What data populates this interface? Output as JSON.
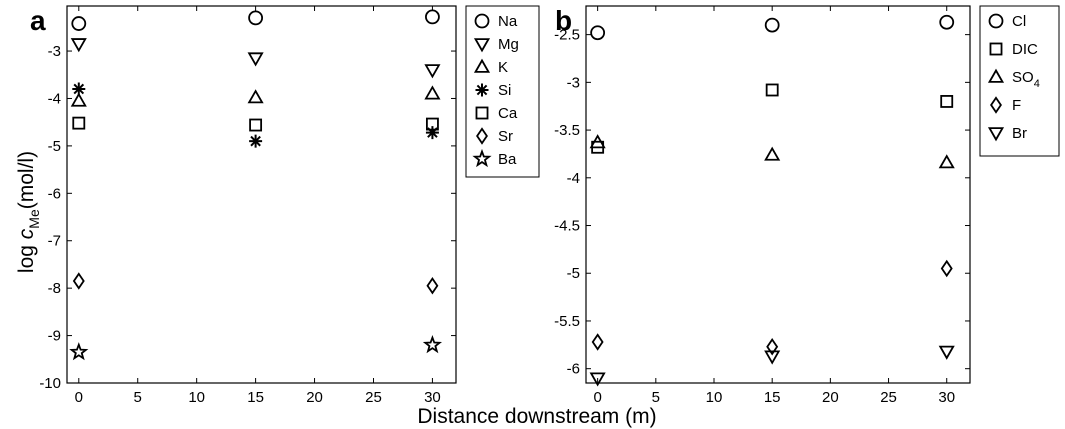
{
  "figure": {
    "xlabel": "Distance downstream (m)"
  },
  "chart_data": [
    {
      "panel": "a",
      "type": "scatter",
      "ylabel_prefix": "log ",
      "ylabel_var": "c",
      "ylabel_sub": "Me",
      "ylabel_suffix": "(mol/l)",
      "xlim": [
        -1,
        32
      ],
      "ylim": [
        -10,
        -2.05
      ],
      "xticks": [
        0,
        5,
        10,
        15,
        20,
        25,
        30
      ],
      "yticks": [
        -10,
        -9,
        -8,
        -7,
        -6,
        -5,
        -4,
        -3
      ],
      "legend": "outside-right",
      "series": [
        {
          "name": "Na",
          "marker": "circle",
          "x": [
            0,
            15,
            30
          ],
          "y": [
            -2.42,
            -2.3,
            -2.28
          ]
        },
        {
          "name": "Mg",
          "marker": "triangle-down",
          "x": [
            0,
            15,
            30
          ],
          "y": [
            -2.85,
            -3.15,
            -3.4
          ]
        },
        {
          "name": "K",
          "marker": "triangle-up",
          "x": [
            0,
            15,
            30
          ],
          "y": [
            -4.05,
            -3.98,
            -3.9
          ]
        },
        {
          "name": "Si",
          "marker": "asterisk",
          "x": [
            0,
            15,
            30
          ],
          "y": [
            -3.8,
            -4.9,
            -4.72
          ]
        },
        {
          "name": "Ca",
          "marker": "square",
          "x": [
            0,
            15,
            30
          ],
          "y": [
            -4.52,
            -4.56,
            -4.54
          ]
        },
        {
          "name": "Sr",
          "marker": "diamond",
          "x": [
            0,
            30
          ],
          "y": [
            -7.85,
            -7.95
          ]
        },
        {
          "name": "Ba",
          "marker": "star",
          "x": [
            0,
            30
          ],
          "y": [
            -9.35,
            -9.2
          ]
        }
      ]
    },
    {
      "panel": "b",
      "type": "scatter",
      "xlim": [
        -1,
        32
      ],
      "ylim": [
        -6.15,
        -2.2
      ],
      "xticks": [
        0,
        5,
        10,
        15,
        20,
        25,
        30
      ],
      "yticks": [
        -6,
        -5.5,
        -5,
        -4.5,
        -4,
        -3.5,
        -3,
        -2.5
      ],
      "ytick_labels": [
        "-6",
        "-5.5",
        "-5",
        "-4.5",
        "-4",
        "-3.5",
        "-3",
        "-2.5"
      ],
      "legend": "outside-right",
      "series": [
        {
          "name": "Cl",
          "marker": "circle",
          "x": [
            0,
            15,
            30
          ],
          "y": [
            -2.48,
            -2.4,
            -2.37
          ]
        },
        {
          "name": "DIC",
          "marker": "square",
          "x": [
            0,
            15,
            30
          ],
          "y": [
            -3.68,
            -3.08,
            -3.2
          ]
        },
        {
          "name": "SO",
          "name_sub": "4",
          "marker": "triangle-up",
          "x": [
            0,
            15,
            30
          ],
          "y": [
            -3.63,
            -3.76,
            -3.84
          ]
        },
        {
          "name": "F",
          "marker": "diamond",
          "x": [
            0,
            15,
            30
          ],
          "y": [
            -5.72,
            -5.77,
            -4.95
          ]
        },
        {
          "name": "Br",
          "marker": "triangle-down",
          "x": [
            0,
            15,
            30
          ],
          "y": [
            -6.1,
            -5.87,
            -5.82
          ]
        }
      ]
    }
  ]
}
